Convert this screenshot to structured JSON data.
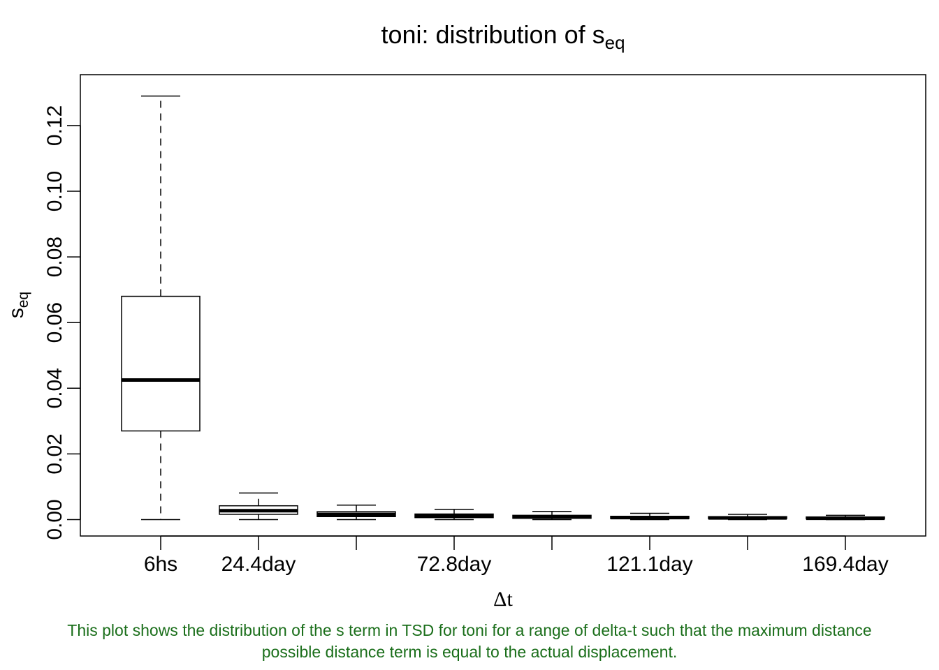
{
  "chart_data": {
    "type": "box",
    "title": {
      "main": "toni: distribution of s",
      "sub": "eq"
    },
    "xlabel": "Δt",
    "ylabel": {
      "main": "s",
      "sub": "eq"
    },
    "ylim": [
      -0.005,
      0.1355
    ],
    "yticks": [
      "0.00",
      "0.02",
      "0.04",
      "0.06",
      "0.08",
      "0.10",
      "0.12"
    ],
    "grid": false,
    "categories": [
      "6hs",
      "24.4day",
      "",
      "72.8day",
      "",
      "121.1day",
      "",
      "169.4day"
    ],
    "boxes": [
      {
        "min": 0.0,
        "q1": 0.027,
        "median": 0.0425,
        "q3": 0.068,
        "max": 0.129
      },
      {
        "min": 0.0,
        "q1": 0.0016,
        "median": 0.0027,
        "q3": 0.0042,
        "max": 0.0081
      },
      {
        "min": 0.0,
        "q1": 0.0009,
        "median": 0.0016,
        "q3": 0.0024,
        "max": 0.0044
      },
      {
        "min": 0.0,
        "q1": 0.0006,
        "median": 0.0011,
        "q3": 0.0017,
        "max": 0.0031
      },
      {
        "min": 0.0,
        "q1": 0.0004,
        "median": 0.0008,
        "q3": 0.0013,
        "max": 0.0025
      },
      {
        "min": 0.0,
        "q1": 0.0003,
        "median": 0.0006,
        "q3": 0.001,
        "max": 0.0019
      },
      {
        "min": 0.0,
        "q1": 0.0003,
        "median": 0.0005,
        "q3": 0.0009,
        "max": 0.0016
      },
      {
        "min": 0.0,
        "q1": 0.0002,
        "median": 0.0004,
        "q3": 0.0008,
        "max": 0.0013
      }
    ],
    "caption": "This plot shows the distribution of the s term in TSD for toni for a range of delta-t such that the maximum distance possible distance term is equal to the actual displacement.",
    "caption_color": "#1a6e1a"
  }
}
